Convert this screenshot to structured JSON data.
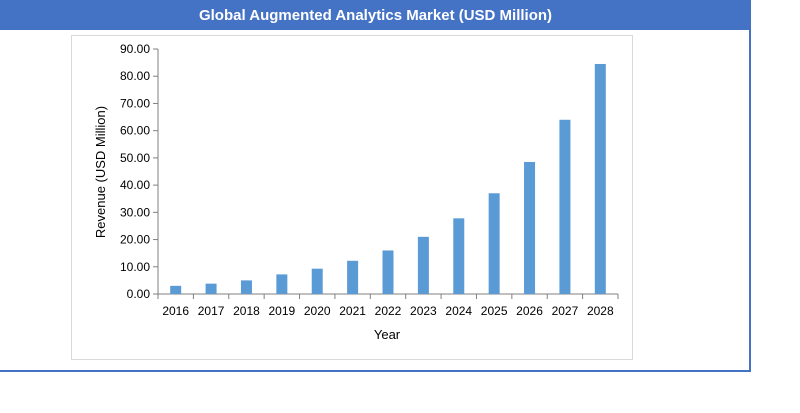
{
  "header": {
    "title": "Global Augmented Analytics Market (USD Million)"
  },
  "colors": {
    "title_bar": "#4472c4",
    "bar_fill": "#5b9bd5",
    "frame_border": "#4472c4"
  },
  "chart_data": {
    "type": "bar",
    "title": "Global Augmented Analytics Market (USD Million)",
    "xlabel": "Year",
    "ylabel": "Revenue (USD Million)",
    "categories": [
      "2016",
      "2017",
      "2018",
      "2019",
      "2020",
      "2021",
      "2022",
      "2023",
      "2024",
      "2025",
      "2026",
      "2027",
      "2028"
    ],
    "values": [
      3.0,
      3.8,
      5.0,
      7.2,
      9.3,
      12.2,
      16.0,
      21.0,
      27.8,
      37.0,
      48.5,
      64.0,
      84.5
    ],
    "yticks": [
      "0.00",
      "10.00",
      "20.00",
      "30.00",
      "40.00",
      "50.00",
      "60.00",
      "70.00",
      "80.00",
      "90.00"
    ],
    "ylim": [
      0,
      90
    ],
    "grid": false,
    "legend": "none"
  }
}
